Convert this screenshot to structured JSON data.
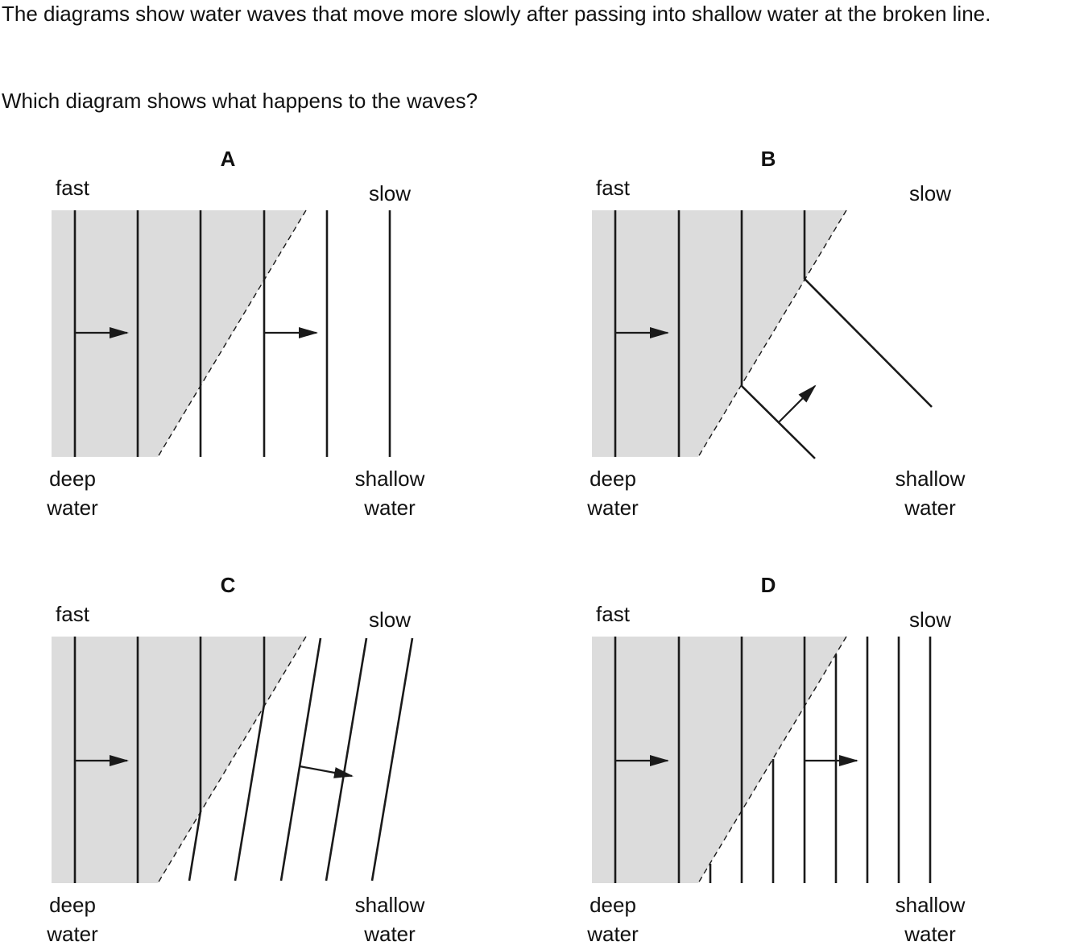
{
  "question": {
    "text": "The diagrams show water waves that move more slowly after passing into shallow water at the broken line.",
    "prompt": "Which diagram shows what happens to the waves?"
  },
  "labels": {
    "fast": "fast",
    "slow": "slow",
    "deep": "deep",
    "deep_water": "water",
    "shallow": "shallow",
    "shallow_water": "water"
  },
  "options": [
    {
      "letter": "A"
    },
    {
      "letter": "B"
    },
    {
      "letter": "C"
    },
    {
      "letter": "D"
    }
  ],
  "colors": {
    "deep_water_fill": "#dcdcdc",
    "lines": "#1a1a1a"
  }
}
